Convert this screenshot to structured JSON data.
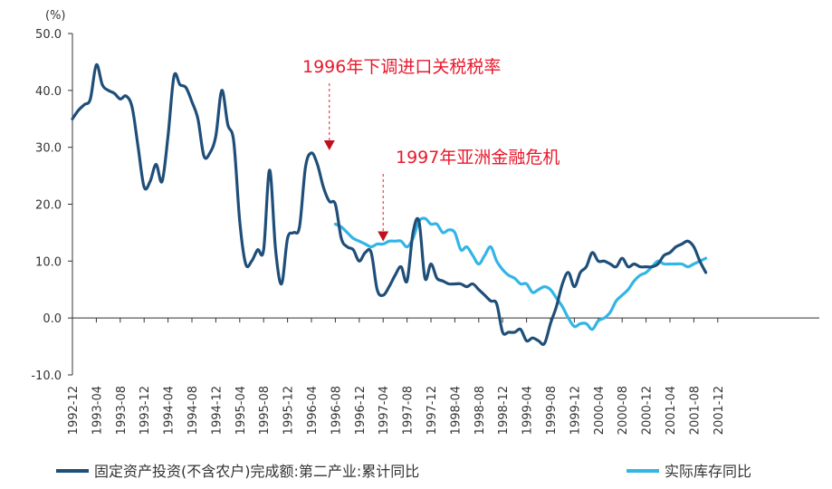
{
  "chart_data": {
    "type": "line",
    "unit_label": "(%)",
    "ylim": [
      -10,
      50
    ],
    "y_ticks": [
      "50.0",
      "40.0",
      "30.0",
      "20.0",
      "10.0",
      "0.0",
      "-10.0"
    ],
    "y_tick_values": [
      50,
      40,
      30,
      20,
      10,
      0,
      -10
    ],
    "x_start": "1992-12",
    "x_end": "2001-12",
    "x_ticks": [
      "1992-12",
      "1993-04",
      "1993-08",
      "1993-12",
      "1994-04",
      "1994-08",
      "1994-12",
      "1995-04",
      "1995-08",
      "1995-12",
      "1996-04",
      "1996-08",
      "1996-12",
      "1997-04",
      "1997-08",
      "1997-12",
      "1998-04",
      "1998-08",
      "1998-12",
      "1999-04",
      "1999-08",
      "1999-12",
      "2000-04",
      "2000-08",
      "2000-12",
      "2001-04",
      "2001-08",
      "2001-12"
    ],
    "grid": false,
    "legend_position": "bottom",
    "series": [
      {
        "name": "固定资产投资(不含农户)完成额:第二产业:累计同比",
        "color": "#1f4e79",
        "points": [
          [
            "1992-12",
            35
          ],
          [
            "1993-01",
            36.5
          ],
          [
            "1993-02",
            37.5
          ],
          [
            "1993-03",
            38.5
          ],
          [
            "1993-04",
            44.5
          ],
          [
            "1993-05",
            41
          ],
          [
            "1993-06",
            40
          ],
          [
            "1993-07",
            39.5
          ],
          [
            "1993-08",
            38.5
          ],
          [
            "1993-09",
            39
          ],
          [
            "1993-10",
            37
          ],
          [
            "1993-11",
            30
          ],
          [
            "1993-12",
            23
          ],
          [
            "1994-01",
            24
          ],
          [
            "1994-02",
            27
          ],
          [
            "1994-03",
            24
          ],
          [
            "1994-04",
            32
          ],
          [
            "1994-05",
            42.5
          ],
          [
            "1994-06",
            41
          ],
          [
            "1994-07",
            40.5
          ],
          [
            "1994-08",
            38
          ],
          [
            "1994-09",
            35
          ],
          [
            "1994-10",
            28.5
          ],
          [
            "1994-11",
            29
          ],
          [
            "1994-12",
            32
          ],
          [
            "1995-01",
            40
          ],
          [
            "1995-02",
            34
          ],
          [
            "1995-03",
            31
          ],
          [
            "1995-04",
            17
          ],
          [
            "1995-05",
            9.5
          ],
          [
            "1995-06",
            10
          ],
          [
            "1995-07",
            12
          ],
          [
            "1995-08",
            12
          ],
          [
            "1995-09",
            26
          ],
          [
            "1995-10",
            12
          ],
          [
            "1995-11",
            6
          ],
          [
            "1995-12",
            14
          ],
          [
            "1996-01",
            15
          ],
          [
            "1996-02",
            16
          ],
          [
            "1996-03",
            26.5
          ],
          [
            "1996-04",
            29
          ],
          [
            "1996-05",
            27
          ],
          [
            "1996-06",
            23
          ],
          [
            "1996-07",
            20.5
          ],
          [
            "1996-08",
            20
          ],
          [
            "1996-09",
            14
          ],
          [
            "1996-10",
            12.5
          ],
          [
            "1996-11",
            12
          ],
          [
            "1996-12",
            10
          ],
          [
            "1997-01",
            11.5
          ],
          [
            "1997-02",
            11.5
          ],
          [
            "1997-03",
            5
          ],
          [
            "1997-04",
            4
          ],
          [
            "1997-05",
            5.5
          ],
          [
            "1997-06",
            7.5
          ],
          [
            "1997-07",
            9
          ],
          [
            "1997-08",
            6.5
          ],
          [
            "1997-09",
            15
          ],
          [
            "1997-10",
            17
          ],
          [
            "1997-11",
            7
          ],
          [
            "1997-12",
            9.5
          ],
          [
            "1998-01",
            7
          ],
          [
            "1998-02",
            6.5
          ],
          [
            "1998-03",
            6
          ],
          [
            "1998-04",
            6
          ],
          [
            "1998-05",
            6
          ],
          [
            "1998-06",
            5.5
          ],
          [
            "1998-07",
            6
          ],
          [
            "1998-08",
            5
          ],
          [
            "1998-09",
            4
          ],
          [
            "1998-10",
            3
          ],
          [
            "1998-11",
            2.5
          ],
          [
            "1998-12",
            -2.5
          ],
          [
            "1999-01",
            -2.5
          ],
          [
            "1999-02",
            -2.5
          ],
          [
            "1999-03",
            -2
          ],
          [
            "1999-04",
            -4
          ],
          [
            "1999-05",
            -3.5
          ],
          [
            "1999-06",
            -4
          ],
          [
            "1999-07",
            -4.5
          ],
          [
            "1999-08",
            -1
          ],
          [
            "1999-09",
            2
          ],
          [
            "1999-10",
            6
          ],
          [
            "1999-11",
            8
          ],
          [
            "1999-12",
            5.5
          ],
          [
            "2000-01",
            8
          ],
          [
            "2000-02",
            9
          ],
          [
            "2000-03",
            11.5
          ],
          [
            "2000-04",
            10
          ],
          [
            "2000-05",
            10
          ],
          [
            "2000-06",
            9.5
          ],
          [
            "2000-07",
            9
          ],
          [
            "2000-08",
            10.5
          ],
          [
            "2000-09",
            9
          ],
          [
            "2000-10",
            9.5
          ],
          [
            "2000-11",
            9
          ],
          [
            "2000-12",
            9
          ],
          [
            "2001-01",
            9
          ],
          [
            "2001-02",
            9.5
          ],
          [
            "2001-03",
            11
          ],
          [
            "2001-04",
            11.5
          ],
          [
            "2001-05",
            12.5
          ],
          [
            "2001-06",
            13
          ],
          [
            "2001-07",
            13.5
          ],
          [
            "2001-08",
            12.5
          ],
          [
            "2001-09",
            10
          ],
          [
            "2001-10",
            8
          ]
        ]
      },
      {
        "name": "实际库存同比",
        "color": "#33b5e5",
        "points": [
          [
            "1996-08",
            16.5
          ],
          [
            "1996-09",
            16
          ],
          [
            "1996-10",
            15
          ],
          [
            "1996-11",
            14
          ],
          [
            "1996-12",
            13.5
          ],
          [
            "1997-01",
            13
          ],
          [
            "1997-02",
            12.5
          ],
          [
            "1997-03",
            13
          ],
          [
            "1997-04",
            13
          ],
          [
            "1997-05",
            13.5
          ],
          [
            "1997-06",
            13.5
          ],
          [
            "1997-07",
            13.5
          ],
          [
            "1997-08",
            12.5
          ],
          [
            "1997-09",
            14
          ],
          [
            "1997-10",
            17
          ],
          [
            "1997-11",
            17.5
          ],
          [
            "1997-12",
            16.5
          ],
          [
            "1998-01",
            16.5
          ],
          [
            "1998-02",
            15
          ],
          [
            "1998-03",
            15.5
          ],
          [
            "1998-04",
            15
          ],
          [
            "1998-05",
            12
          ],
          [
            "1998-06",
            12.5
          ],
          [
            "1998-07",
            11
          ],
          [
            "1998-08",
            9.5
          ],
          [
            "1998-09",
            11
          ],
          [
            "1998-10",
            12.5
          ],
          [
            "1998-11",
            10
          ],
          [
            "1998-12",
            8.5
          ],
          [
            "1999-01",
            7.5
          ],
          [
            "1999-02",
            7
          ],
          [
            "1999-03",
            6
          ],
          [
            "1999-04",
            6
          ],
          [
            "1999-05",
            4.5
          ],
          [
            "1999-06",
            5
          ],
          [
            "1999-07",
            5.5
          ],
          [
            "1999-08",
            5
          ],
          [
            "1999-09",
            3.5
          ],
          [
            "1999-10",
            2
          ],
          [
            "1999-11",
            0
          ],
          [
            "1999-12",
            -1.5
          ],
          [
            "2000-01",
            -1
          ],
          [
            "2000-02",
            -1
          ],
          [
            "2000-03",
            -2
          ],
          [
            "2000-04",
            -0.5
          ],
          [
            "2000-05",
            0
          ],
          [
            "2000-06",
            1
          ],
          [
            "2000-07",
            3
          ],
          [
            "2000-08",
            4
          ],
          [
            "2000-09",
            5
          ],
          [
            "2000-10",
            6.5
          ],
          [
            "2000-11",
            7.5
          ],
          [
            "2000-12",
            8
          ],
          [
            "2001-01",
            9
          ],
          [
            "2001-02",
            10
          ],
          [
            "2001-03",
            9.5
          ],
          [
            "2001-04",
            9.5
          ],
          [
            "2001-05",
            9.5
          ],
          [
            "2001-06",
            9.5
          ],
          [
            "2001-07",
            9
          ],
          [
            "2001-08",
            9.5
          ],
          [
            "2001-09",
            10
          ],
          [
            "2001-10",
            10.5
          ]
        ]
      }
    ],
    "annotations": [
      {
        "text": "1996年下调进口关税税率",
        "at": "1996-07",
        "y": 29
      },
      {
        "text": "1997年亚洲金融危机",
        "at": "1997-04",
        "y": 13
      }
    ]
  }
}
